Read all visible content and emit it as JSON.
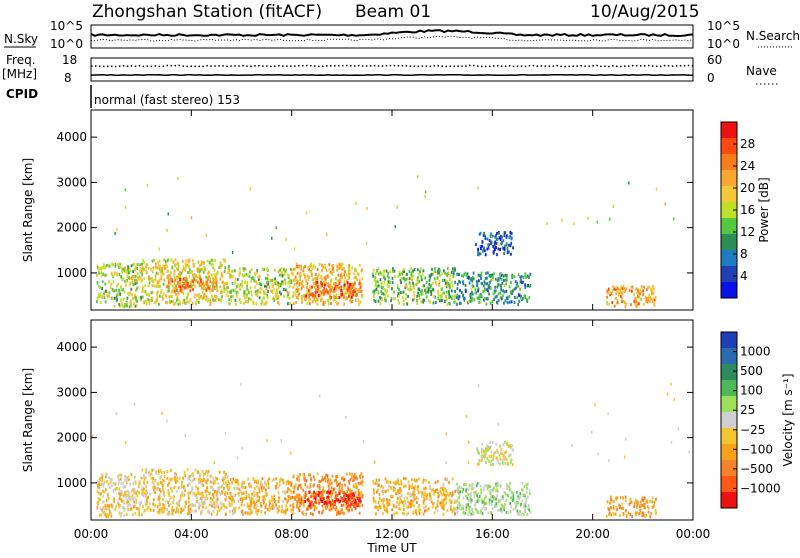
{
  "header": {
    "station": "Zhongshan Station (fitACF)",
    "beam": "Beam 01",
    "date": "10/Aug/2015"
  },
  "aux": {
    "nsky_label": "N.Sky",
    "nsky_ticks": [
      "10^5",
      "10^0"
    ],
    "nsearch_label": "N.Search",
    "nsearch_ticks": [
      "10^5",
      "10^0"
    ],
    "freq_label": "Freq.",
    "freq_unit": "[MHz]",
    "freq_ticks": [
      "18",
      "8"
    ],
    "nave_label": "Nave",
    "nave_ticks": [
      "60",
      "0"
    ],
    "cpid_label": "CPID",
    "cpid_text": "normal (fast stereo) 153"
  },
  "axes": {
    "y_label": "Slant Range [km]",
    "y_ticks": [
      "4000",
      "3000",
      "2000",
      "1000"
    ],
    "x_label": "Time UT",
    "x_ticks": [
      "00:00",
      "04:00",
      "08:00",
      "12:00",
      "16:00",
      "20:00",
      "00:00"
    ]
  },
  "colorbars": {
    "power": {
      "label": "Power [dB]",
      "ticks": [
        "28",
        "24",
        "20",
        "16",
        "12",
        "8",
        "4"
      ],
      "colors": [
        "#ee1111",
        "#ff4a11",
        "#f77d1f",
        "#fba733",
        "#f3c83a",
        "#bfe028",
        "#55c843",
        "#2f8c59",
        "#1f7cc0",
        "#1f3fb3",
        "#0a10e8"
      ]
    },
    "velocity": {
      "label": "Velocity [m s⁻¹]",
      "ticks": [
        "1000",
        "500",
        "100",
        "25",
        "−25",
        "−100",
        "−500",
        "−1000"
      ],
      "colors": [
        "#1d3fb8",
        "#2a6aae",
        "#2f8a5e",
        "#4fb85a",
        "#9ee05a",
        "#cfcfcf",
        "#f3c531",
        "#f7a21b",
        "#f7822c",
        "#ff5716",
        "#ee1111"
      ]
    }
  },
  "chart_data": [
    {
      "type": "heatmap",
      "title": "Power",
      "x": [
        "00:00",
        "04:00",
        "08:00",
        "12:00",
        "16:00",
        "20:00",
        "00:00"
      ],
      "xlabel": "Time UT",
      "ylabel": "Slant Range [km]",
      "ylim": [
        180,
        4600
      ],
      "colorbar": "Power [dB]",
      "scatter_regions": [
        {
          "t0": 0.2,
          "t1": 2.0,
          "r0": 250,
          "r1": 1200,
          "value": 16
        },
        {
          "t0": 2.0,
          "t1": 5.5,
          "r0": 300,
          "r1": 1300,
          "value": 18
        },
        {
          "t0": 3.0,
          "t1": 5.0,
          "r0": 600,
          "r1": 900,
          "value": 24
        },
        {
          "t0": 5.5,
          "t1": 8.0,
          "r0": 300,
          "r1": 1100,
          "value": 16
        },
        {
          "t0": 8.0,
          "t1": 10.8,
          "r0": 300,
          "r1": 1200,
          "value": 20
        },
        {
          "t0": 8.5,
          "t1": 10.8,
          "r0": 450,
          "r1": 800,
          "value": 26
        },
        {
          "t0": 11.2,
          "t1": 14.5,
          "r0": 300,
          "r1": 1100,
          "value": 14
        },
        {
          "t0": 14.5,
          "t1": 17.5,
          "r0": 300,
          "r1": 1000,
          "value": 10
        },
        {
          "t0": 15.3,
          "t1": 16.8,
          "r0": 1400,
          "r1": 1900,
          "value": 6
        },
        {
          "t0": 20.5,
          "t1": 22.5,
          "r0": 250,
          "r1": 700,
          "value": 22
        }
      ]
    },
    {
      "type": "heatmap",
      "title": "Velocity",
      "x": [
        "00:00",
        "04:00",
        "08:00",
        "12:00",
        "16:00",
        "20:00",
        "00:00"
      ],
      "xlabel": "Time UT",
      "ylabel": "Slant Range [km]",
      "ylim": [
        180,
        4600
      ],
      "colorbar": "Velocity [m s⁻¹]",
      "scatter_regions": [
        {
          "t0": 0.2,
          "t1": 2.0,
          "r0": 250,
          "r1": 1200,
          "value": -150
        },
        {
          "t0": 2.0,
          "t1": 5.5,
          "r0": 300,
          "r1": 1300,
          "value": -200
        },
        {
          "t0": 5.5,
          "t1": 8.0,
          "r0": 300,
          "r1": 1100,
          "value": -300
        },
        {
          "t0": 8.0,
          "t1": 10.8,
          "r0": 300,
          "r1": 1200,
          "value": -500
        },
        {
          "t0": 8.5,
          "t1": 10.8,
          "r0": 450,
          "r1": 800,
          "value": -900
        },
        {
          "t0": 11.2,
          "t1": 14.5,
          "r0": 300,
          "r1": 1100,
          "value": -300
        },
        {
          "t0": 14.5,
          "t1": 17.5,
          "r0": 300,
          "r1": 1000,
          "value": 150
        },
        {
          "t0": 15.3,
          "t1": 16.8,
          "r0": 1400,
          "r1": 1900,
          "value": 0
        },
        {
          "t0": 20.5,
          "t1": 22.5,
          "r0": 250,
          "r1": 700,
          "value": -400
        }
      ]
    }
  ]
}
